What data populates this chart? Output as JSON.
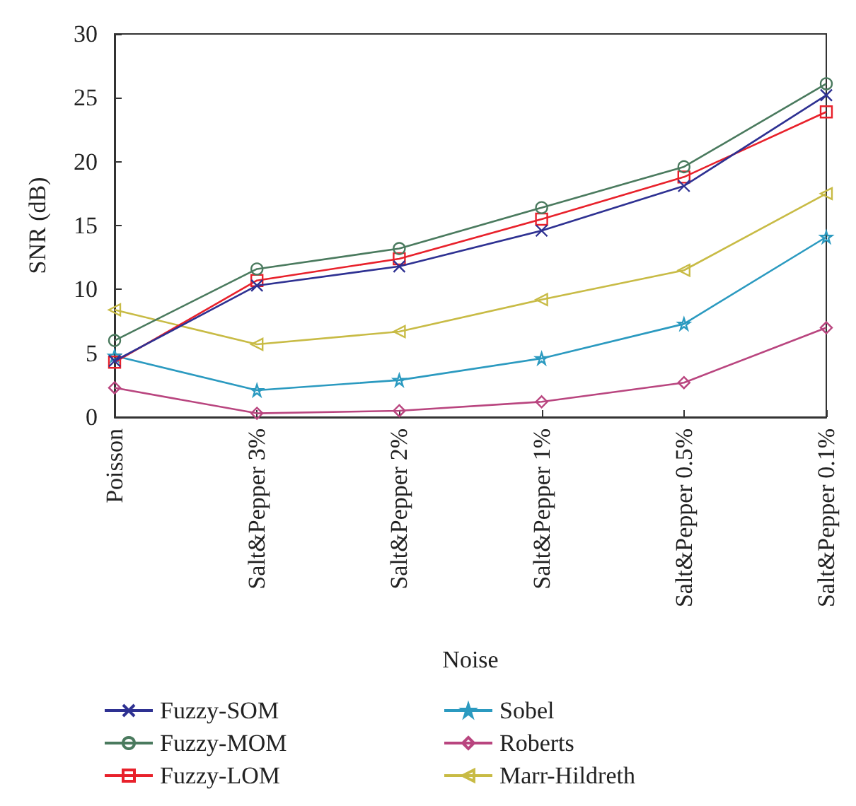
{
  "chart_data": {
    "type": "line",
    "xlabel": "Noise",
    "ylabel": "SNR (dB)",
    "categories": [
      "Poisson",
      "Salt&Pepper 3%",
      "Salt&Pepper 2%",
      "Salt&Pepper 1%",
      "Salt&Pepper 0.5%",
      "Salt&Pepper 0.1%"
    ],
    "ylim": [
      0,
      30
    ],
    "yticks": [
      0,
      5,
      10,
      15,
      20,
      25,
      30
    ],
    "grid": false,
    "legend": "bottom",
    "line_style": "solid",
    "series": [
      {
        "name": "Fuzzy-SOM",
        "color": "#2e3192",
        "marker": "cross",
        "values": [
          4.4,
          10.3,
          11.8,
          14.6,
          18.1,
          25.2
        ]
      },
      {
        "name": "Fuzzy-MOM",
        "color": "#4a7a5e",
        "marker": "circle",
        "values": [
          6.0,
          11.6,
          13.2,
          16.4,
          19.6,
          26.1
        ]
      },
      {
        "name": "Fuzzy-LOM",
        "color": "#e8212b",
        "marker": "square",
        "values": [
          4.3,
          10.7,
          12.4,
          15.5,
          18.8,
          23.9
        ]
      },
      {
        "name": "Sobel",
        "color": "#2b9ac0",
        "marker": "star",
        "values": [
          4.8,
          2.1,
          2.9,
          4.6,
          7.3,
          14.1
        ]
      },
      {
        "name": "Roberts",
        "color": "#b9457f",
        "marker": "diamond",
        "values": [
          2.3,
          0.3,
          0.5,
          1.2,
          2.7,
          7.0
        ]
      },
      {
        "name": "Marr-Hildreth",
        "color": "#c8bb45",
        "marker": "triangle",
        "values": [
          8.4,
          5.7,
          6.7,
          9.2,
          11.5,
          17.5
        ]
      }
    ]
  }
}
